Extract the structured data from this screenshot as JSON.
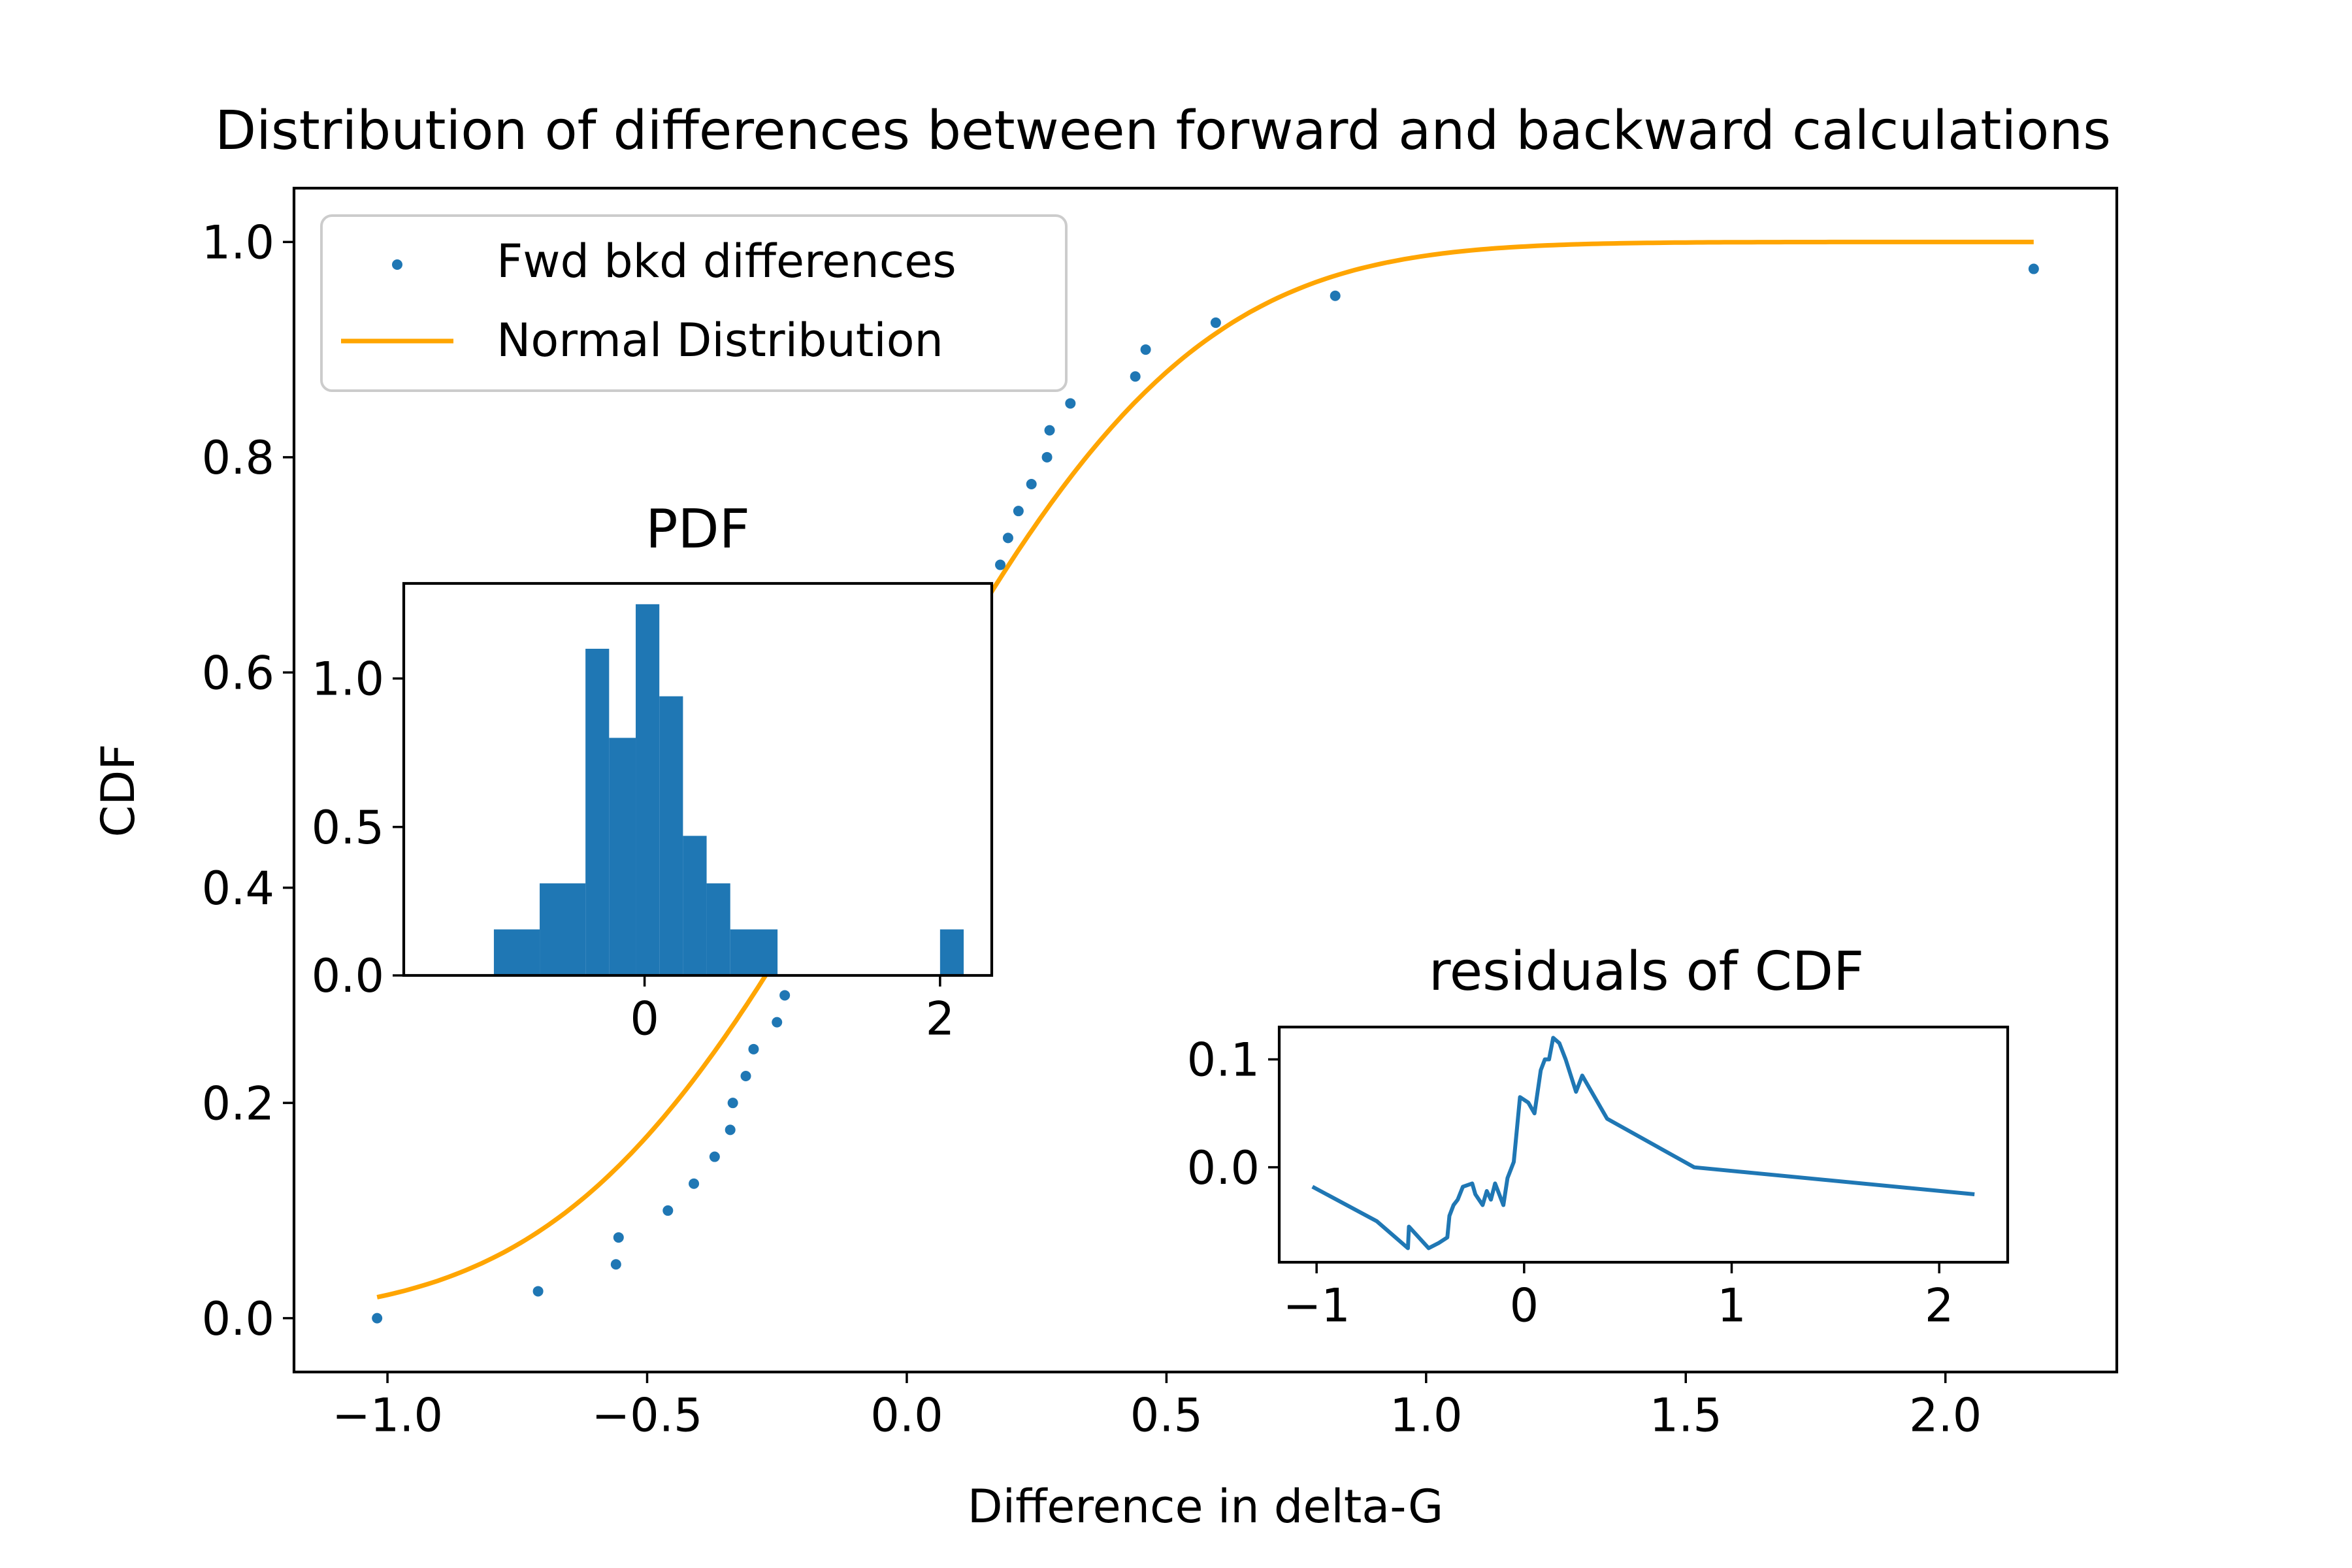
{
  "colors": {
    "scatter": "#1f77b4",
    "normal": "#ffa500",
    "hist": "#1f77b4",
    "residual": "#1f77b4",
    "axes": "#000000",
    "legend_border": "#cccccc"
  },
  "chart_data": [
    {
      "id": "main",
      "type": "scatter",
      "title": "Distribution of differences between forward and backward calculations",
      "xlabel": "Difference in delta-G",
      "ylabel": "CDF",
      "xlim": [
        -1.18,
        2.33
      ],
      "ylim": [
        -0.05,
        1.05
      ],
      "x_ticks": [
        -1.0,
        -0.5,
        0.0,
        0.5,
        1.0,
        1.5,
        2.0
      ],
      "x_tick_labels": [
        "−1.0",
        "−0.5",
        "0.0",
        "0.5",
        "1.0",
        "1.5",
        "2.0"
      ],
      "y_ticks": [
        0.0,
        0.2,
        0.4,
        0.6,
        0.8,
        1.0
      ],
      "y_tick_labels": [
        "0.0",
        "0.2",
        "0.4",
        "0.6",
        "0.8",
        "1.0"
      ],
      "legend": {
        "position": "upper-left",
        "entries": [
          {
            "label": "Fwd bkd differences",
            "marker": "dot",
            "series": "scatter"
          },
          {
            "label": "Normal Distribution",
            "marker": "line",
            "series": "normal"
          }
        ]
      },
      "series": [
        {
          "name": "Fwd bkd differences",
          "kind": "scatter",
          "points": [
            [
              -1.02,
              0.0
            ],
            [
              -0.71,
              0.025
            ],
            [
              -0.56,
              0.05
            ],
            [
              -0.555,
              0.075
            ],
            [
              -0.46,
              0.1
            ],
            [
              -0.41,
              0.125
            ],
            [
              -0.37,
              0.15
            ],
            [
              -0.34,
              0.175
            ],
            [
              -0.335,
              0.2
            ],
            [
              -0.31,
              0.225
            ],
            [
              -0.295,
              0.25
            ],
            [
              -0.25,
              0.275
            ],
            [
              -0.235,
              0.3
            ],
            [
              0.155,
              0.675
            ],
            [
              0.18,
              0.7
            ],
            [
              0.195,
              0.725
            ],
            [
              0.215,
              0.75
            ],
            [
              0.24,
              0.775
            ],
            [
              0.27,
              0.8
            ],
            [
              0.275,
              0.825
            ],
            [
              0.315,
              0.85
            ],
            [
              0.44,
              0.875
            ],
            [
              0.46,
              0.9
            ],
            [
              0.595,
              0.925
            ],
            [
              0.825,
              0.95
            ],
            [
              2.17,
              0.975
            ]
          ]
        },
        {
          "name": "Normal Distribution",
          "kind": "line",
          "mu": -0.05,
          "sigma": 0.47,
          "x_range": [
            -1.02,
            2.17
          ]
        }
      ]
    },
    {
      "id": "pdf",
      "type": "bar",
      "title": "PDF",
      "xlim": [
        -1.63,
        2.35
      ],
      "ylim": [
        0,
        1.32
      ],
      "x_ticks": [
        0,
        2
      ],
      "x_tick_labels": [
        "0",
        "2"
      ],
      "y_ticks": [
        0.0,
        0.5,
        1.0
      ],
      "y_tick_labels": [
        "0.0",
        "0.5",
        "1.0"
      ],
      "bins": [
        {
          "left": -1.02,
          "right": -0.71,
          "value": 0.155
        },
        {
          "left": -0.71,
          "right": -0.4,
          "value": 0.31
        },
        {
          "left": -0.4,
          "right": -0.24,
          "value": 1.1
        },
        {
          "left": -0.24,
          "right": -0.06,
          "value": 0.8
        },
        {
          "left": -0.06,
          "right": 0.1,
          "value": 1.25
        },
        {
          "left": 0.1,
          "right": 0.26,
          "value": 0.94
        },
        {
          "left": 0.26,
          "right": 0.42,
          "value": 0.47
        },
        {
          "left": 0.42,
          "right": 0.58,
          "value": 0.31
        },
        {
          "left": 0.58,
          "right": 0.9,
          "value": 0.155
        },
        {
          "left": 2.0,
          "right": 2.16,
          "value": 0.155
        }
      ]
    },
    {
      "id": "residuals",
      "type": "line",
      "title": "residuals of CDF",
      "xlim": [
        -1.18,
        2.33
      ],
      "ylim": [
        -0.088,
        0.13
      ],
      "x_ticks": [
        -1,
        0,
        1,
        2
      ],
      "x_tick_labels": [
        "−1",
        "0",
        "1",
        "2"
      ],
      "y_ticks": [
        0.0,
        0.1
      ],
      "y_tick_labels": [
        "0.0",
        "0.1"
      ],
      "points": [
        [
          -1.02,
          -0.018
        ],
        [
          -0.71,
          -0.05
        ],
        [
          -0.56,
          -0.075
        ],
        [
          -0.555,
          -0.055
        ],
        [
          -0.46,
          -0.075
        ],
        [
          -0.41,
          -0.07
        ],
        [
          -0.37,
          -0.065
        ],
        [
          -0.36,
          -0.045
        ],
        [
          -0.34,
          -0.035
        ],
        [
          -0.32,
          -0.03
        ],
        [
          -0.295,
          -0.018
        ],
        [
          -0.25,
          -0.015
        ],
        [
          -0.235,
          -0.025
        ],
        [
          -0.2,
          -0.035
        ],
        [
          -0.18,
          -0.022
        ],
        [
          -0.16,
          -0.03
        ],
        [
          -0.14,
          -0.015
        ],
        [
          -0.1,
          -0.035
        ],
        [
          -0.08,
          -0.01
        ],
        [
          -0.05,
          0.005
        ],
        [
          -0.02,
          0.065
        ],
        [
          0.02,
          0.06
        ],
        [
          0.05,
          0.05
        ],
        [
          0.08,
          0.09
        ],
        [
          0.1,
          0.1
        ],
        [
          0.12,
          0.1
        ],
        [
          0.14,
          0.12
        ],
        [
          0.17,
          0.115
        ],
        [
          0.2,
          0.1
        ],
        [
          0.25,
          0.07
        ],
        [
          0.28,
          0.085
        ],
        [
          0.4,
          0.045
        ],
        [
          0.82,
          0.0
        ],
        [
          2.17,
          -0.025
        ]
      ]
    }
  ]
}
